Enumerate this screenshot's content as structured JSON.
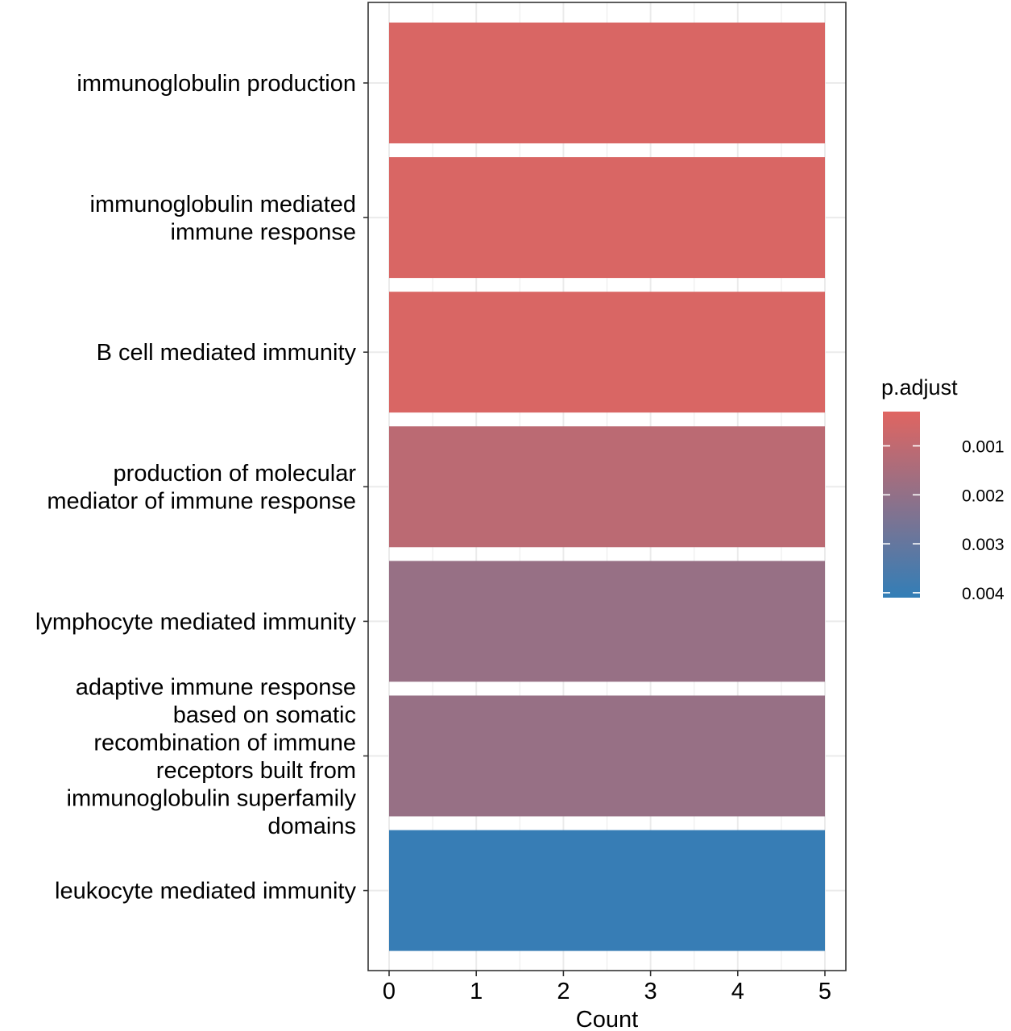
{
  "chart_data": {
    "type": "bar",
    "orientation": "horizontal",
    "categories": [
      [
        "immunoglobulin production"
      ],
      [
        "immunoglobulin mediated",
        "immune response"
      ],
      [
        "B cell mediated immunity"
      ],
      [
        "production of molecular",
        "mediator of immune response"
      ],
      [
        "lymphocyte mediated immunity"
      ],
      [
        "adaptive immune response",
        "based on somatic",
        "recombination of immune",
        "receptors built from",
        "immunoglobulin superfamily",
        "domains"
      ],
      [
        "leukocyte mediated immunity"
      ]
    ],
    "values": [
      5,
      5,
      5,
      5,
      5,
      5,
      5
    ],
    "p_adjust": [
      0.00045,
      0.00045,
      0.00045,
      0.0011,
      0.0019,
      0.0019,
      0.004
    ],
    "xlabel": "Count",
    "ylabel": "",
    "xlim": [
      0,
      5
    ],
    "xticks": [
      0,
      1,
      2,
      3,
      4,
      5
    ],
    "grid": true,
    "legend": {
      "title": "p.adjust",
      "position": "right",
      "range": [
        0.0003,
        0.0041
      ],
      "ticks": [
        {
          "value": 0.001,
          "label": "0.001"
        },
        {
          "value": 0.002,
          "label": "0.002"
        },
        {
          "value": 0.003,
          "label": "0.003"
        },
        {
          "value": 0.004,
          "label": "0.004"
        }
      ],
      "color_low": "#e06561",
      "color_high": "#327eb7"
    }
  }
}
